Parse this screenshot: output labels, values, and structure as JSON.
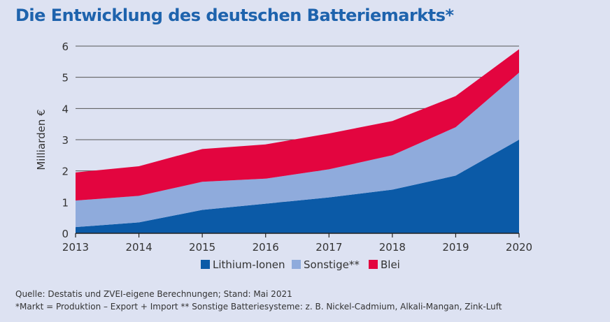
{
  "title": "Die Entwicklung des deutschen Batteriemarkts*",
  "footer": {
    "source": "Quelle: Destatis und ZVEI-eigene Berechnungen; Stand: Mai 2021",
    "note": "*Markt = Produktion – Export + Import  ** Sonstige Batteriesysteme: z. B. Nickel-Cadmium, Alkali-Mangan, Zink-Luft"
  },
  "colors": {
    "background": "#dde2f2",
    "title": "#1e63ad"
  },
  "chart_data": {
    "type": "area",
    "stacked": true,
    "title": "Die Entwicklung des deutschen Batteriemarkts*",
    "ylabel": "Milliarden €",
    "xlabel": "",
    "x": [
      "2013",
      "2014",
      "2015",
      "2016",
      "2017",
      "2018",
      "2019",
      "2020"
    ],
    "ylim": [
      0,
      6
    ],
    "yticks": [
      "0",
      "1",
      "2",
      "3",
      "4",
      "5",
      "6"
    ],
    "grid": true,
    "legend_position": "bottom",
    "series": [
      {
        "name": "Lithium-Ionen",
        "color": "#0b5aa7",
        "values": [
          0.2,
          0.35,
          0.75,
          0.95,
          1.15,
          1.4,
          1.85,
          3.0
        ]
      },
      {
        "name": "Sonstige**",
        "color": "#8fabdc",
        "values": [
          0.85,
          0.85,
          0.9,
          0.8,
          0.9,
          1.1,
          1.55,
          2.15
        ]
      },
      {
        "name": "Blei",
        "color": "#e3053f",
        "values": [
          0.9,
          0.95,
          1.05,
          1.1,
          1.15,
          1.1,
          1.0,
          0.75
        ]
      }
    ]
  }
}
